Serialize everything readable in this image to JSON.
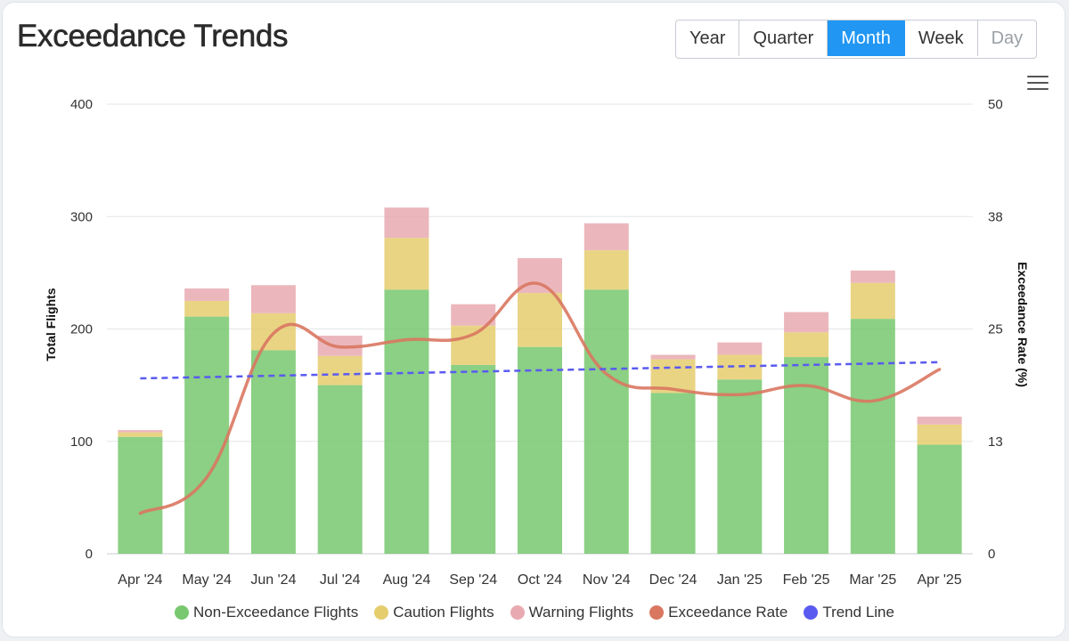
{
  "header": {
    "title": "Exceedance Trends"
  },
  "range_buttons": [
    {
      "label": "Year",
      "state": "normal"
    },
    {
      "label": "Quarter",
      "state": "normal"
    },
    {
      "label": "Month",
      "state": "active"
    },
    {
      "label": "Week",
      "state": "normal"
    },
    {
      "label": "Day",
      "state": "disabled"
    }
  ],
  "menu": {
    "icon": "hamburger-menu-icon"
  },
  "colors": {
    "non_exceedance": "#77c86f",
    "caution": "#e5cd6e",
    "warning": "#e8aab0",
    "exceedance_rate": "#d97761",
    "trend_line": "#5a5af0",
    "accent": "#2196f3"
  },
  "chart_data": {
    "type": "bar",
    "stacked": true,
    "categories": [
      "Apr '24",
      "May '24",
      "Jun '24",
      "Jul '24",
      "Aug '24",
      "Sep '24",
      "Oct '24",
      "Nov '24",
      "Dec '24",
      "Jan '25",
      "Feb '25",
      "Mar '25",
      "Apr '25"
    ],
    "series": [
      {
        "name": "Non-Exceedance Flights",
        "axis": "left",
        "values": [
          104,
          211,
          181,
          150,
          235,
          168,
          184,
          235,
          143,
          155,
          175,
          209,
          97
        ]
      },
      {
        "name": "Caution Flights",
        "axis": "left",
        "values": [
          4,
          14,
          33,
          26,
          46,
          35,
          48,
          35,
          30,
          22,
          22,
          32,
          18
        ]
      },
      {
        "name": "Warning Flights",
        "axis": "left",
        "values": [
          2,
          11,
          25,
          18,
          27,
          19,
          31,
          24,
          4,
          11,
          18,
          11,
          7
        ]
      },
      {
        "name": "Exceedance Rate",
        "axis": "right",
        "type": "line",
        "smooth": true,
        "values": [
          4.5,
          8.5,
          24.5,
          23.0,
          23.8,
          24.4,
          30.0,
          20.0,
          18.3,
          17.7,
          18.7,
          17.0,
          20.5
        ]
      },
      {
        "name": "Trend Line",
        "axis": "right",
        "type": "line",
        "dashed": true,
        "values": [
          19.5,
          19.7,
          19.8,
          20.0,
          20.1,
          20.3,
          20.4,
          20.6,
          20.7,
          20.9,
          21.0,
          21.2,
          21.3
        ]
      }
    ],
    "y_left": {
      "label": "Total Flights",
      "ticks": [
        "0",
        "100",
        "200",
        "300",
        "400"
      ],
      "ylim": [
        0,
        400
      ]
    },
    "y_right": {
      "label": "Exceedance Rate (%)",
      "ticks": [
        "0",
        "13",
        "25",
        "38",
        "50"
      ],
      "ylim": [
        0,
        50
      ]
    },
    "grid": true,
    "legend_position": "bottom-center"
  }
}
